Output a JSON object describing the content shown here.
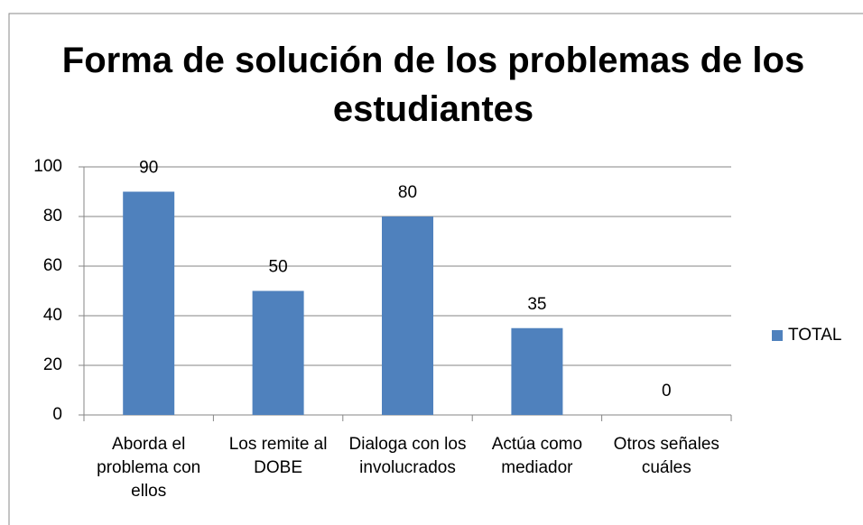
{
  "chart_data": {
    "type": "bar",
    "title": "Forma de solución de los problemas de los estudiantes",
    "categories": [
      "Aborda el problema con ellos",
      "Los remite al DOBE",
      "Dialoga con los involucrados",
      "Actúa como mediador",
      "Otros señales cuáles"
    ],
    "series": [
      {
        "name": "TOTAL",
        "color": "#4f81bd",
        "values": [
          90,
          50,
          80,
          35,
          0
        ]
      }
    ],
    "ylim": [
      0,
      100
    ],
    "yticks": [
      0,
      20,
      40,
      60,
      80,
      100
    ],
    "grid": true,
    "legend": "right"
  }
}
